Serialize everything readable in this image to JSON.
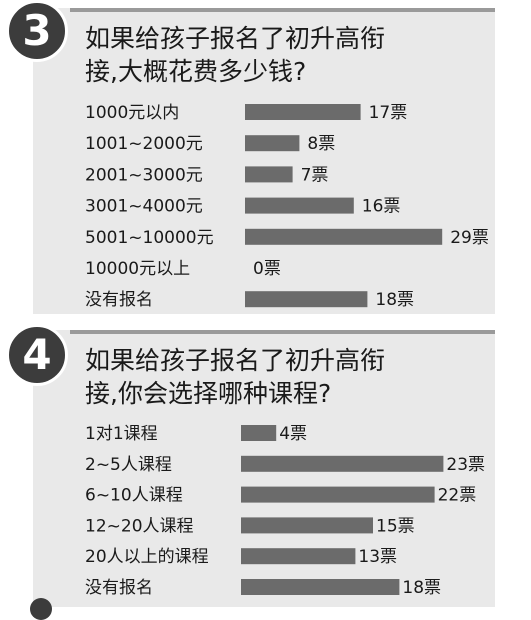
{
  "sections": [
    {
      "number": "3",
      "question_line1": "如果给孩子报名了初升高衔",
      "question_line2": "接,大概花费多少钱?"
    },
    {
      "number": "4",
      "question_line1": "如果给孩子报名了初升高衔",
      "question_line2": "接,你会选择哪种课程?"
    }
  ],
  "chart_data": [
    {
      "type": "bar",
      "orientation": "horizontal",
      "categories": [
        "1000元以内",
        "1001~2000元",
        "2001~3000元",
        "3001~4000元",
        "5001~10000元",
        "10000元以上",
        "没有报名"
      ],
      "values": [
        17,
        8,
        7,
        16,
        29,
        0,
        18
      ],
      "value_labels": [
        "17票",
        "8票",
        "7票",
        "16票",
        "29票",
        "0票",
        "18票"
      ],
      "bar_color": "#6b6b6b"
    },
    {
      "type": "bar",
      "orientation": "horizontal",
      "categories": [
        "1对1课程",
        "2~5人课程",
        "6~10人课程",
        "12~20人课程",
        "20人以上的课程",
        "没有报名"
      ],
      "values": [
        4,
        23,
        22,
        15,
        13,
        18
      ],
      "value_labels": [
        "4票",
        "23票",
        "22票",
        "15票",
        "13票",
        "18票"
      ],
      "bar_color": "#6b6b6b"
    }
  ]
}
